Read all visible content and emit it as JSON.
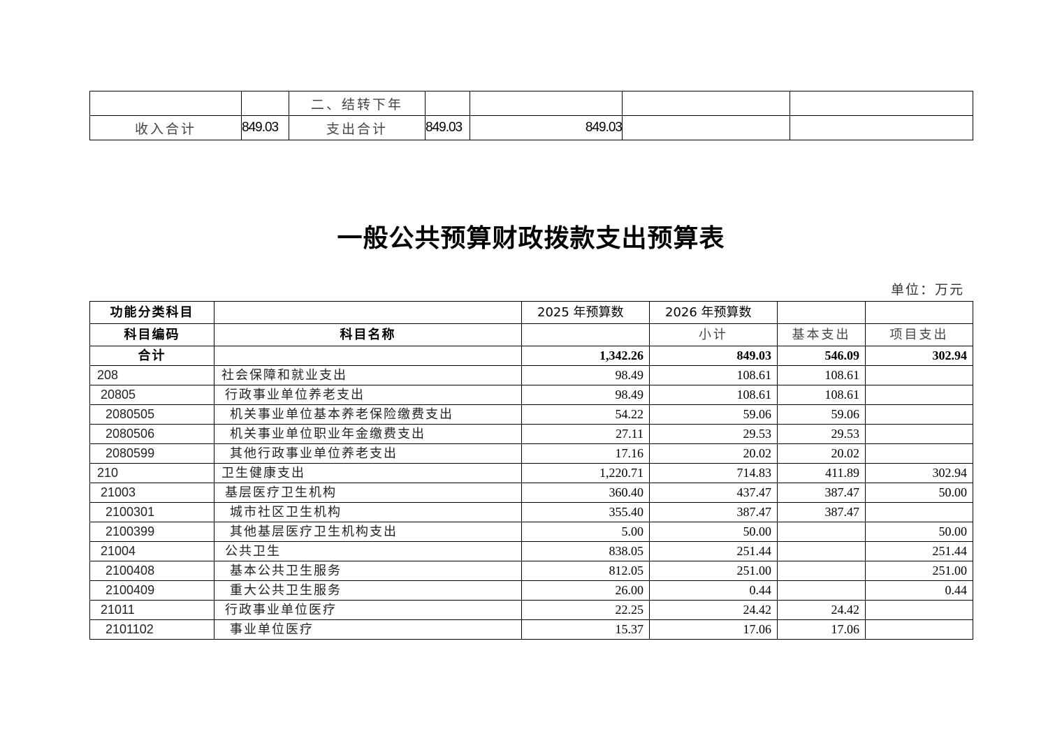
{
  "top_table": {
    "row1": {
      "label": "二、结转下年"
    },
    "row2": {
      "income_label": "收入合计",
      "income_value": "849.03",
      "expense_label": "支出合计",
      "expense_value": "849.03",
      "total_value": "849.03"
    }
  },
  "title": "一般公共预算财政拨款支出预算表",
  "unit": "单位：万元",
  "main_table": {
    "headers": {
      "category": "功能分类科目",
      "y2025": "2025 年预算数",
      "y2026": "2026 年预算数",
      "code": "科目编码",
      "name": "科目名称",
      "subtotal": "小计",
      "basic": "基本支出",
      "project": "项目支出"
    },
    "total": {
      "label": "合计",
      "y2025": "1,342.26",
      "subtotal": "849.03",
      "basic": "546.09",
      "project": "302.94"
    },
    "rows": [
      {
        "code": "208",
        "name": "社会保障和就业支出",
        "level": 0,
        "y2025": "98.49",
        "subtotal": "108.61",
        "basic": "108.61",
        "project": ""
      },
      {
        "code": "20805",
        "name": "行政事业单位养老支出",
        "level": 1,
        "y2025": "98.49",
        "subtotal": "108.61",
        "basic": "108.61",
        "project": ""
      },
      {
        "code": "2080505",
        "name": "机关事业单位基本养老保险缴费支出",
        "level": 2,
        "y2025": "54.22",
        "subtotal": "59.06",
        "basic": "59.06",
        "project": ""
      },
      {
        "code": "2080506",
        "name": "机关事业单位职业年金缴费支出",
        "level": 2,
        "y2025": "27.11",
        "subtotal": "29.53",
        "basic": "29.53",
        "project": ""
      },
      {
        "code": "2080599",
        "name": "其他行政事业单位养老支出",
        "level": 2,
        "y2025": "17.16",
        "subtotal": "20.02",
        "basic": "20.02",
        "project": ""
      },
      {
        "code": "210",
        "name": "卫生健康支出",
        "level": 0,
        "y2025": "1,220.71",
        "subtotal": "714.83",
        "basic": "411.89",
        "project": "302.94"
      },
      {
        "code": "21003",
        "name": "基层医疗卫生机构",
        "level": 1,
        "y2025": "360.40",
        "subtotal": "437.47",
        "basic": "387.47",
        "project": "50.00"
      },
      {
        "code": "2100301",
        "name": "城市社区卫生机构",
        "level": 2,
        "y2025": "355.40",
        "subtotal": "387.47",
        "basic": "387.47",
        "project": ""
      },
      {
        "code": "2100399",
        "name": "其他基层医疗卫生机构支出",
        "level": 2,
        "y2025": "5.00",
        "subtotal": "50.00",
        "basic": "",
        "project": "50.00"
      },
      {
        "code": "21004",
        "name": "公共卫生",
        "level": 1,
        "y2025": "838.05",
        "subtotal": "251.44",
        "basic": "",
        "project": "251.44"
      },
      {
        "code": "2100408",
        "name": "基本公共卫生服务",
        "level": 2,
        "y2025": "812.05",
        "subtotal": "251.00",
        "basic": "",
        "project": "251.00"
      },
      {
        "code": "2100409",
        "name": "重大公共卫生服务",
        "level": 2,
        "y2025": "26.00",
        "subtotal": "0.44",
        "basic": "",
        "project": "0.44"
      },
      {
        "code": "21011",
        "name": "行政事业单位医疗",
        "level": 1,
        "y2025": "22.25",
        "subtotal": "24.42",
        "basic": "24.42",
        "project": ""
      },
      {
        "code": "2101102",
        "name": "事业单位医疗",
        "level": 2,
        "y2025": "15.37",
        "subtotal": "17.06",
        "basic": "17.06",
        "project": ""
      }
    ]
  }
}
